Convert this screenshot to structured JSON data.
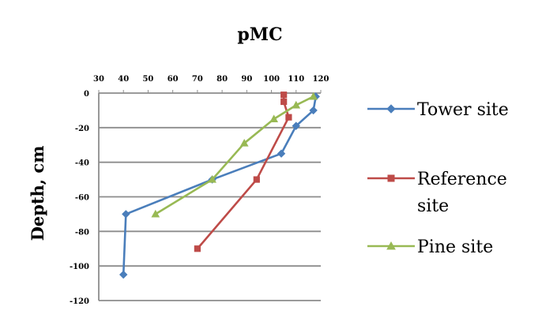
{
  "chart_data": {
    "type": "line",
    "title": "pMC",
    "xlabel": "",
    "ylabel": "Depth, cm",
    "xlim": [
      30,
      120
    ],
    "ylim": [
      -120,
      0
    ],
    "x_ticks": [
      30,
      40,
      50,
      60,
      70,
      80,
      90,
      100,
      110,
      120
    ],
    "y_ticks": [
      0,
      -20,
      -40,
      -60,
      -80,
      -100,
      -120
    ],
    "x_axis_position": "top",
    "grid": "horizontal",
    "legend_position": "right",
    "series": [
      {
        "name": "Tower site",
        "color": "#4a7ebb",
        "marker": "diamond",
        "points": [
          [
            118,
            -2
          ],
          [
            117,
            -10
          ],
          [
            110,
            -19
          ],
          [
            104,
            -35
          ],
          [
            76,
            -50
          ],
          [
            41,
            -70
          ],
          [
            40,
            -105
          ]
        ]
      },
      {
        "name": "Reference site",
        "color": "#be4b48",
        "marker": "square",
        "points": [
          [
            105,
            -1
          ],
          [
            105,
            -5
          ],
          [
            107,
            -14
          ],
          [
            94,
            -50
          ],
          [
            70,
            -90
          ]
        ]
      },
      {
        "name": "Pine site",
        "color": "#98b954",
        "marker": "triangle",
        "points": [
          [
            117,
            -2
          ],
          [
            110,
            -7
          ],
          [
            101,
            -15
          ],
          [
            89,
            -29
          ],
          [
            76,
            -50
          ],
          [
            53,
            -70
          ]
        ]
      }
    ]
  }
}
